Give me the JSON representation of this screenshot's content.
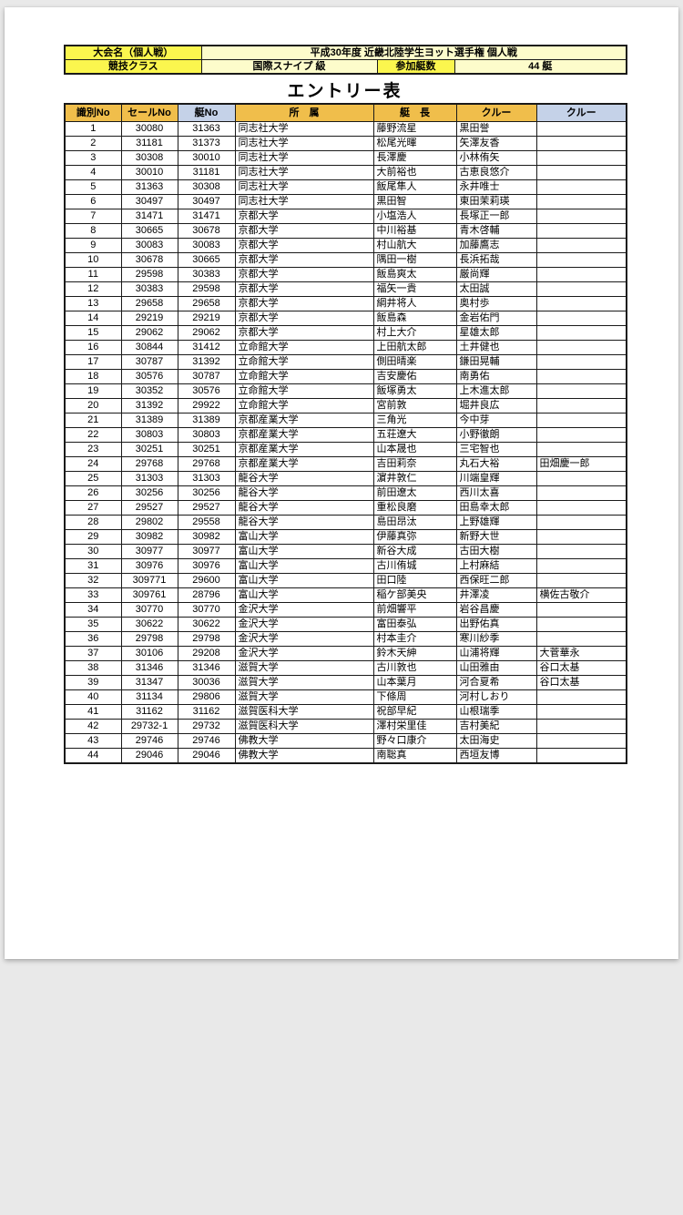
{
  "colors": {
    "bright_yellow": "#fbf64e",
    "light_yellow": "#fdfccb",
    "orange": "#f0be4b",
    "light_blue": "#c5d2e8",
    "grid": "#1a1a1a"
  },
  "info": {
    "event_label": "大会名（個人戦）",
    "event_value": "平成30年度 近畿北陸学生ヨット選手権 個人戦",
    "class_label": "競技クラス",
    "class_value": "国際スナイプ 級",
    "count_label": "参加艇数",
    "count_value": "44 艇"
  },
  "title": "エントリー表",
  "table": {
    "columns": [
      "識別No",
      "セールNo",
      "艇No",
      "所　属",
      "艇　長",
      "クルー",
      "クルー"
    ],
    "rows": [
      [
        "1",
        "30080",
        "31363",
        "同志社大学",
        "藤野流星",
        "黒田誉",
        ""
      ],
      [
        "2",
        "31181",
        "31373",
        "同志社大学",
        "松尾光暉",
        "矢澤友香",
        ""
      ],
      [
        "3",
        "30308",
        "30010",
        "同志社大学",
        "長澤慶",
        "小林侑矢",
        ""
      ],
      [
        "4",
        "30010",
        "31181",
        "同志社大学",
        "大前裕也",
        "古恵良悠介",
        ""
      ],
      [
        "5",
        "31363",
        "30308",
        "同志社大学",
        "飯尾隼人",
        "永井唯士",
        ""
      ],
      [
        "6",
        "30497",
        "30497",
        "同志社大学",
        "黒田智",
        "東田茉莉瑛",
        ""
      ],
      [
        "7",
        "31471",
        "31471",
        "京都大学",
        "小塩浩人",
        "長塚正一郎",
        ""
      ],
      [
        "8",
        "30665",
        "30678",
        "京都大学",
        "中川裕基",
        "青木啓輔",
        ""
      ],
      [
        "9",
        "30083",
        "30083",
        "京都大学",
        "村山航大",
        "加藤鷹志",
        ""
      ],
      [
        "10",
        "30678",
        "30665",
        "京都大学",
        "隅田一樹",
        "長浜拓哉",
        ""
      ],
      [
        "11",
        "29598",
        "30383",
        "京都大学",
        "飯島爽太",
        "厳尚輝",
        ""
      ],
      [
        "12",
        "30383",
        "29598",
        "京都大学",
        "福矢一貴",
        "太田誠",
        ""
      ],
      [
        "13",
        "29658",
        "29658",
        "京都大学",
        "綱井将人",
        "奥村歩",
        ""
      ],
      [
        "14",
        "29219",
        "29219",
        "京都大学",
        "飯島森",
        "金岩佑門",
        ""
      ],
      [
        "15",
        "29062",
        "29062",
        "京都大学",
        "村上大介",
        "星雄太郎",
        ""
      ],
      [
        "16",
        "30844",
        "31412",
        "立命館大学",
        "上田航太郎",
        "土井健也",
        ""
      ],
      [
        "17",
        "30787",
        "31392",
        "立命館大学",
        "側田晴楽",
        "鎌田晃輔",
        ""
      ],
      [
        "18",
        "30576",
        "30787",
        "立命館大学",
        "吉安慶佑",
        "南勇佑",
        ""
      ],
      [
        "19",
        "30352",
        "30576",
        "立命館大学",
        "飯塚勇太",
        "上木進太郎",
        ""
      ],
      [
        "20",
        "31392",
        "29922",
        "立命館大学",
        "宮前敦",
        "堀井良広",
        ""
      ],
      [
        "21",
        "31389",
        "31389",
        "京都産業大学",
        "三角光",
        "今中芽",
        ""
      ],
      [
        "22",
        "30803",
        "30803",
        "京都産業大学",
        "五荘遼大",
        "小野徹朗",
        ""
      ],
      [
        "23",
        "30251",
        "30251",
        "京都産業大学",
        "山本晟也",
        "三宅智也",
        ""
      ],
      [
        "24",
        "29768",
        "29768",
        "京都産業大学",
        "吉田莉奈",
        "丸石大裕",
        "田畑慶一郎"
      ],
      [
        "25",
        "31303",
        "31303",
        "龍谷大学",
        "濵井敦仁",
        "川端皇輝",
        ""
      ],
      [
        "26",
        "30256",
        "30256",
        "龍谷大学",
        "前田遼太",
        "西川太喜",
        ""
      ],
      [
        "27",
        "29527",
        "29527",
        "龍谷大学",
        "重松良磨",
        "田島幸太郎",
        ""
      ],
      [
        "28",
        "29802",
        "29558",
        "龍谷大学",
        "島田昂汰",
        "上野雄輝",
        ""
      ],
      [
        "29",
        "30982",
        "30982",
        "富山大学",
        "伊藤真弥",
        "新野大世",
        ""
      ],
      [
        "30",
        "30977",
        "30977",
        "富山大学",
        "新谷大成",
        "古田大樹",
        ""
      ],
      [
        "31",
        "30976",
        "30976",
        "富山大学",
        "古川侑城",
        "上村麻結",
        ""
      ],
      [
        "32",
        "309771",
        "29600",
        "富山大学",
        "田口陸",
        "西保旺二郎",
        ""
      ],
      [
        "33",
        "309761",
        "28796",
        "富山大学",
        "稲ケ部美央",
        "井澤凌",
        "横佐古敬介"
      ],
      [
        "34",
        "30770",
        "30770",
        "金沢大学",
        "前畑響平",
        "岩谷昌慶",
        ""
      ],
      [
        "35",
        "30622",
        "30622",
        "金沢大学",
        "富田泰弘",
        "出野佑真",
        ""
      ],
      [
        "36",
        "29798",
        "29798",
        "金沢大学",
        "村本圭介",
        "寒川紗季",
        ""
      ],
      [
        "37",
        "30106",
        "29208",
        "金沢大学",
        "鈴木天紳",
        "山浦将輝",
        "大菅華永"
      ],
      [
        "38",
        "31346",
        "31346",
        "滋賀大学",
        "古川敦也",
        "山田雅由",
        "谷口太基"
      ],
      [
        "39",
        "31347",
        "30036",
        "滋賀大学",
        "山本葉月",
        "河合夏希",
        "谷口太基"
      ],
      [
        "40",
        "31134",
        "29806",
        "滋賀大学",
        "下條周",
        "河村しおり",
        ""
      ],
      [
        "41",
        "31162",
        "31162",
        "滋賀医科大学",
        "祝部早紀",
        " 山根瑞季",
        ""
      ],
      [
        "42",
        "29732-1",
        "29732",
        "滋賀医科大学",
        "澤村栄里佳",
        "吉村美紀",
        ""
      ],
      [
        "43",
        "29746",
        "29746",
        "佛教大学",
        "野々口康介",
        "太田海史",
        ""
      ],
      [
        "44",
        "29046",
        "29046",
        "佛教大学",
        "南聡真",
        "西垣友博",
        ""
      ]
    ]
  }
}
